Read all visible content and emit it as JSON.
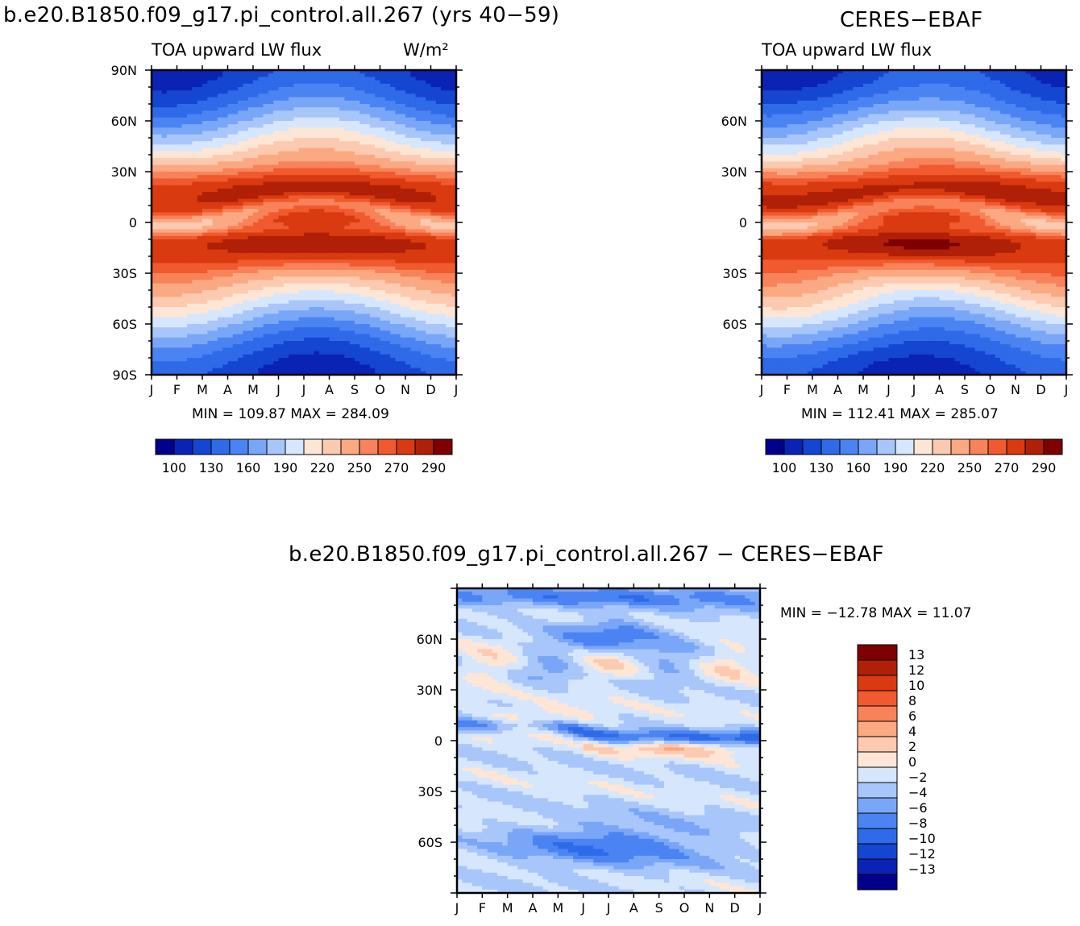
{
  "panels": {
    "model": {
      "title": "b.e20.B1850.f09_g17.pi_control.all.267 (yrs 40−59)",
      "left_label": "TOA upward LW flux",
      "units": "W/m²",
      "minmax": "MIN = 109.87 MAX = 284.09"
    },
    "obs": {
      "title": "CERES−EBAF",
      "left_label": "TOA upward LW flux",
      "minmax": "MIN = 112.41 MAX = 285.07"
    },
    "diff": {
      "title": "b.e20.B1850.f09_g17.pi_control.all.267 − CERES−EBAF",
      "minmax": "MIN = −12.78 MAX =   11.07"
    }
  },
  "axes": {
    "months": [
      "J",
      "F",
      "M",
      "A",
      "M",
      "J",
      "J",
      "A",
      "S",
      "O",
      "N",
      "D",
      "J"
    ],
    "lat_ticks_model": [
      "90N",
      "60N",
      "30N",
      "0",
      "30S",
      "60S",
      "90S"
    ],
    "lat_ticks_other": [
      "",
      "60N",
      "30N",
      "0",
      "30S",
      "60S",
      ""
    ]
  },
  "colors": {
    "abs_fills": [
      "#00008b",
      "#0a23b4",
      "#1446d2",
      "#2f6ae8",
      "#4b84f2",
      "#7aa6f8",
      "#a9c6fb",
      "#d6e6fc",
      "#fde6d6",
      "#fccab0",
      "#fba982",
      "#f8825a",
      "#f05a2e",
      "#d93a10",
      "#b02008",
      "#7f0000"
    ],
    "diff_fills": [
      "#00008b",
      "#0a23b4",
      "#1446d2",
      "#2f6ae8",
      "#4b84f2",
      "#7aa6f8",
      "#a9c6fb",
      "#d6e6fc",
      "#fde6d6",
      "#fccab0",
      "#fba982",
      "#f8825a",
      "#f05a2e",
      "#d93a10",
      "#b02008",
      "#7f0000"
    ]
  },
  "chart_data": [
    {
      "type": "heatmap",
      "title": "b.e20.B1850.f09_g17.pi_control.all.267 (yrs 40−59)",
      "subtitle": "TOA upward LW flux",
      "units": "W/m²",
      "x": [
        "J",
        "F",
        "M",
        "A",
        "M",
        "J",
        "J",
        "A",
        "S",
        "O",
        "N",
        "D",
        "J"
      ],
      "y_range": [
        -90,
        90
      ],
      "min": 109.87,
      "max": 284.09,
      "levels": [
        100,
        115,
        130,
        145,
        160,
        175,
        190,
        205,
        220,
        235,
        250,
        260,
        270,
        280,
        290
      ],
      "colorbar_labels": [
        "100",
        "130",
        "160",
        "190",
        "220",
        "250",
        "270",
        "290"
      ]
    },
    {
      "type": "heatmap",
      "title": "CERES−EBAF",
      "subtitle": "TOA upward LW flux",
      "x": [
        "J",
        "F",
        "M",
        "A",
        "M",
        "J",
        "J",
        "A",
        "S",
        "O",
        "N",
        "D",
        "J"
      ],
      "y_range": [
        -90,
        90
      ],
      "min": 112.41,
      "max": 285.07,
      "levels": [
        100,
        115,
        130,
        145,
        160,
        175,
        190,
        205,
        220,
        235,
        250,
        260,
        270,
        280,
        290
      ],
      "colorbar_labels": [
        "100",
        "130",
        "160",
        "190",
        "220",
        "250",
        "270",
        "290"
      ]
    },
    {
      "type": "heatmap",
      "title": "b.e20.B1850.f09_g17.pi_control.all.267 − CERES−EBAF",
      "x": [
        "J",
        "F",
        "M",
        "A",
        "M",
        "J",
        "J",
        "A",
        "S",
        "O",
        "N",
        "D",
        "J"
      ],
      "y_range": [
        -90,
        90
      ],
      "min": -12.78,
      "max": 11.07,
      "levels": [
        -13,
        -12,
        -10,
        -8,
        -6,
        -4,
        -2,
        0,
        2,
        4,
        6,
        8,
        10,
        12,
        13
      ],
      "colorbar_labels": [
        "13",
        "12",
        "10",
        "8",
        "6",
        "4",
        "2",
        "0",
        "−2",
        "−4",
        "−6",
        "−8",
        "−10",
        "−12",
        "−13"
      ]
    }
  ]
}
